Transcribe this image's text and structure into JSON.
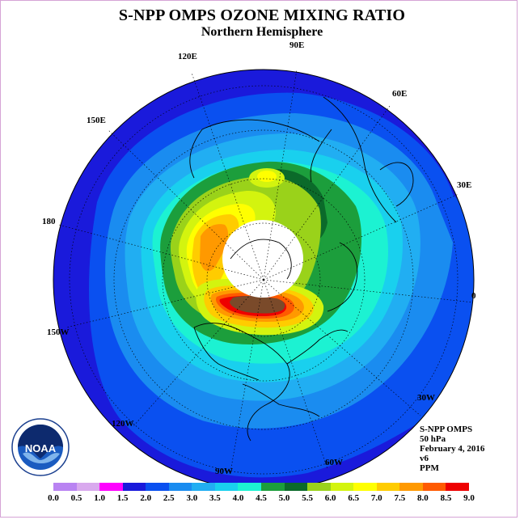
{
  "title": "S-NPP OMPS OZONE MIXING RATIO",
  "subtitle": "Northern Hemisphere",
  "longitude_labels": [
    "90E",
    "60E",
    "30E",
    "0",
    "30W",
    "60W",
    "90W",
    "120W",
    "150W",
    "180",
    "150E",
    "120E"
  ],
  "info": {
    "instrument": "S-NPP OMPS",
    "level": "50 hPa",
    "date": "February 4, 2016",
    "version": "v6",
    "units": "PPM"
  },
  "logo_text": "NOAA",
  "color_scale": {
    "ticks": [
      "0.0",
      "0.5",
      "1.0",
      "1.5",
      "2.0",
      "2.5",
      "3.0",
      "3.5",
      "4.0",
      "4.5",
      "5.0",
      "5.5",
      "6.0",
      "6.5",
      "7.0",
      "7.5",
      "8.0",
      "8.5",
      "9.0"
    ],
    "colors": [
      "#b983f2",
      "#d9a9ee",
      "#ff00ff",
      "#1a1adb",
      "#0a50f0",
      "#1a8cf0",
      "#21aef2",
      "#19d0ee",
      "#1cf2d2",
      "#1c9e3c",
      "#0b6a2a",
      "#9ad21a",
      "#d3f40f",
      "#ffff00",
      "#ffcc00",
      "#ff9900",
      "#ff5a00",
      "#ee0000",
      "#7a4a2a"
    ]
  }
}
